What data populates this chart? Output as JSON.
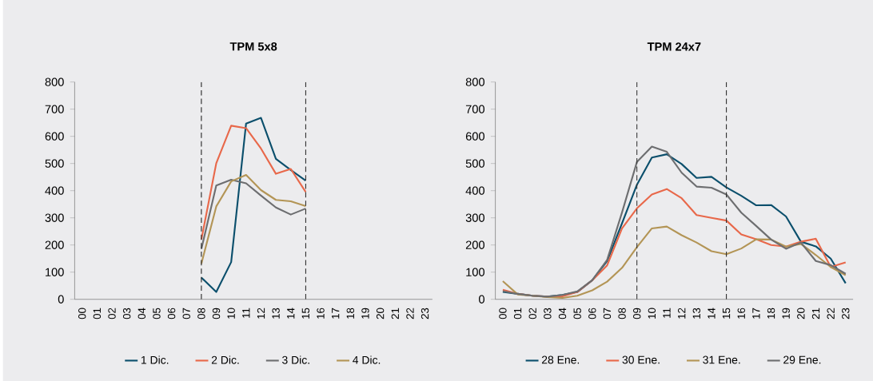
{
  "chart_data": [
    {
      "type": "line",
      "title": "TPM 5x8",
      "categories": [
        "00",
        "01",
        "02",
        "03",
        "04",
        "05",
        "06",
        "07",
        "08",
        "09",
        "10",
        "11",
        "12",
        "13",
        "14",
        "15",
        "16",
        "17",
        "18",
        "19",
        "20",
        "21",
        "22",
        "23"
      ],
      "ylim": [
        0,
        800
      ],
      "yticks": [
        0,
        100,
        200,
        300,
        400,
        500,
        600,
        700,
        800
      ],
      "legend": "bottom",
      "ref_lines": [
        {
          "axis": "x",
          "value": "08",
          "line_style": "dashed",
          "color": "#333333"
        },
        {
          "axis": "x",
          "value": "15",
          "line_style": "dashed",
          "color": "#333333"
        }
      ],
      "series": [
        {
          "name": "1 Dic.",
          "color": "#0b4f6c",
          "values": [
            null,
            null,
            null,
            null,
            null,
            null,
            null,
            null,
            80,
            27,
            137,
            647,
            668,
            517,
            476,
            437,
            null,
            null,
            null,
            null,
            null,
            null,
            null,
            null
          ]
        },
        {
          "name": "2 Dic.",
          "color": "#e8684a",
          "values": [
            null,
            null,
            null,
            null,
            null,
            null,
            null,
            null,
            220,
            501,
            639,
            630,
            555,
            462,
            480,
            395,
            null,
            null,
            null,
            null,
            null,
            null,
            null,
            null
          ]
        },
        {
          "name": "3 Dic.",
          "color": "#6d6e70",
          "values": [
            null,
            null,
            null,
            null,
            null,
            null,
            null,
            null,
            185,
            419,
            440,
            427,
            382,
            338,
            312,
            334,
            null,
            null,
            null,
            null,
            null,
            null,
            null,
            null
          ]
        },
        {
          "name": "4 Dic.",
          "color": "#b39556",
          "values": [
            null,
            null,
            null,
            null,
            null,
            null,
            null,
            null,
            131,
            342,
            434,
            458,
            402,
            366,
            361,
            343,
            null,
            null,
            null,
            null,
            null,
            null,
            null,
            null
          ]
        }
      ]
    },
    {
      "type": "line",
      "title": "TPM 24x7",
      "categories": [
        "00",
        "01",
        "02",
        "03",
        "04",
        "05",
        "06",
        "07",
        "08",
        "09",
        "10",
        "11",
        "12",
        "13",
        "14",
        "15",
        "16",
        "17",
        "18",
        "19",
        "20",
        "21",
        "22",
        "23"
      ],
      "ylim": [
        0,
        800
      ],
      "yticks": [
        0,
        100,
        200,
        300,
        400,
        500,
        600,
        700,
        800
      ],
      "legend": "bottom",
      "ref_lines": [
        {
          "axis": "x",
          "value": "09",
          "line_style": "dashed",
          "color": "#333333"
        },
        {
          "axis": "x",
          "value": "15",
          "line_style": "dashed",
          "color": "#333333"
        }
      ],
      "series": [
        {
          "name": "28 Ene.",
          "color": "#0b4f6c",
          "values": [
            27,
            20,
            13,
            10,
            16,
            27,
            70,
            141,
            280,
            422,
            522,
            534,
            498,
            447,
            451,
            412,
            381,
            346,
            347,
            305,
            212,
            195,
            150,
            59
          ]
        },
        {
          "name": "30 Ene.",
          "color": "#e8684a",
          "values": [
            35,
            20,
            13,
            10,
            11,
            27,
            70,
            125,
            261,
            335,
            386,
            406,
            372,
            310,
            300,
            290,
            239,
            221,
            200,
            194,
            212,
            223,
            119,
            136
          ]
        },
        {
          "name": "31 Ene.",
          "color": "#b39556",
          "values": [
            67,
            18,
            13,
            8,
            5,
            13,
            33,
            65,
            116,
            192,
            261,
            268,
            236,
            209,
            177,
            166,
            187,
            221,
            220,
            194,
            204,
            163,
            119,
            89
          ]
        },
        {
          "name": "29 Ene.",
          "color": "#6d6e70",
          "values": [
            30,
            20,
            13,
            10,
            16,
            29,
            70,
            145,
            320,
            506,
            562,
            543,
            466,
            415,
            411,
            386,
            319,
            270,
            220,
            186,
            209,
            141,
            126,
            94
          ]
        }
      ]
    }
  ]
}
